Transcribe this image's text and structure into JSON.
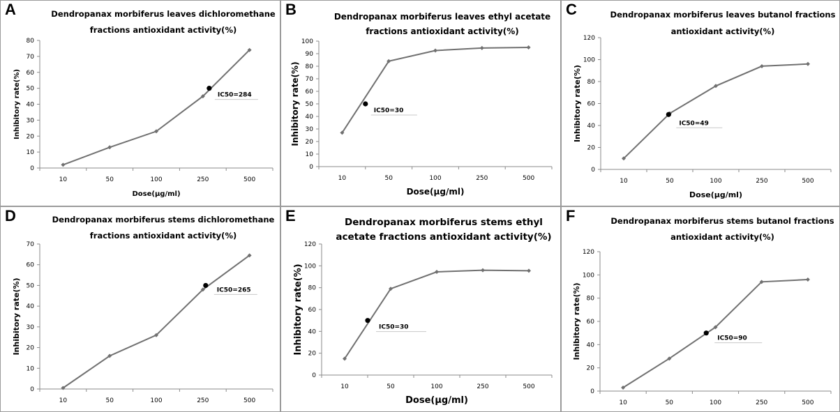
{
  "chart_data": [
    {
      "panel": "A",
      "type": "line",
      "title": [
        "Dendropanax morbiferus leaves dichloromethane",
        "fractions antioxidant activity(%)"
      ],
      "xlabel": "Dose(μg/ml)",
      "ylabel": "Inhibitory rate(%)",
      "categories": [
        "10",
        "50",
        "100",
        "250",
        "500"
      ],
      "x": [
        10,
        50,
        100,
        250,
        500
      ],
      "values": [
        2,
        13,
        23,
        45,
        74
      ],
      "ylim": [
        0,
        80
      ],
      "yticks": [
        0,
        10,
        20,
        30,
        40,
        50,
        60,
        70,
        80
      ],
      "marker": {
        "label": "IC50=284",
        "x": 284,
        "y": 50
      },
      "line_color": "#707070"
    },
    {
      "panel": "B",
      "type": "line",
      "title": [
        "Dendropanax morbiferus leaves ethyl acetate",
        "fractions antioxidant activity(%)"
      ],
      "xlabel": "Dose(μg/ml)",
      "ylabel": "Inhibitory rate(%)",
      "categories": [
        "10",
        "50",
        "100",
        "250",
        "500"
      ],
      "x": [
        10,
        50,
        100,
        250,
        500
      ],
      "values": [
        27,
        84,
        92.5,
        94.5,
        95
      ],
      "ylim": [
        0,
        100
      ],
      "yticks": [
        0,
        10,
        20,
        30,
        40,
        50,
        60,
        70,
        80,
        90,
        100
      ],
      "marker": {
        "label": "IC50=30",
        "x": 30,
        "y": 50
      },
      "line_color": "#707070"
    },
    {
      "panel": "C",
      "type": "line",
      "title": [
        "Dendropanax morbiferus leaves butanol fractions",
        "antioxidant activity(%)"
      ],
      "xlabel": "Dose(μg/ml)",
      "ylabel": "Inhibitory rate(%)",
      "categories": [
        "10",
        "50",
        "100",
        "250",
        "500"
      ],
      "x": [
        10,
        50,
        100,
        250,
        500
      ],
      "values": [
        10,
        51,
        76,
        94,
        96
      ],
      "ylim": [
        0,
        120
      ],
      "yticks": [
        0,
        20,
        40,
        60,
        80,
        100,
        120
      ],
      "marker": {
        "label": "IC50=49",
        "x": 49,
        "y": 50
      },
      "line_color": "#707070"
    },
    {
      "panel": "D",
      "type": "line",
      "title": [
        "Dendropanax morbiferus stems dichloromethane",
        "fractions antioxidant activity(%)"
      ],
      "xlabel": "Dose(μg/ml)",
      "ylabel": "Inhibitory rate(%)",
      "categories": [
        "10",
        "50",
        "100",
        "250",
        "500"
      ],
      "x": [
        10,
        50,
        100,
        250,
        500
      ],
      "values": [
        0.5,
        16,
        26,
        48,
        64.5
      ],
      "ylim": [
        0,
        70
      ],
      "yticks": [
        0,
        10,
        20,
        30,
        40,
        50,
        60,
        70
      ],
      "marker": {
        "label": "IC50=265",
        "x": 265,
        "y": 50
      },
      "line_color": "#707070"
    },
    {
      "panel": "E",
      "type": "line",
      "title": [
        "Dendropanax morbiferus stems ethyl",
        "acetate  fractions antioxidant activity(%)"
      ],
      "xlabel": "Dose(μg/ml)",
      "ylabel": "Inhibitory rate(%)",
      "categories": [
        "10",
        "50",
        "100",
        "250",
        "500"
      ],
      "x": [
        10,
        50,
        100,
        250,
        500
      ],
      "values": [
        15,
        79,
        94.5,
        96,
        95.5
      ],
      "ylim": [
        0,
        120
      ],
      "yticks": [
        0,
        20,
        40,
        60,
        80,
        100,
        120
      ],
      "marker": {
        "label": "IC50=30",
        "x": 30,
        "y": 50
      },
      "line_color": "#707070"
    },
    {
      "panel": "F",
      "type": "line",
      "title": [
        "Dendropanax morbiferus stems butanol fractions",
        "antioxidant activity(%)"
      ],
      "xlabel": "Dose(μg/ml)",
      "ylabel": "Inhibitory rate(%)",
      "categories": [
        "10",
        "50",
        "100",
        "250",
        "500"
      ],
      "x": [
        10,
        50,
        100,
        250,
        500
      ],
      "values": [
        3,
        28,
        55,
        94,
        96
      ],
      "ylim": [
        0,
        120
      ],
      "yticks": [
        0,
        20,
        40,
        60,
        80,
        100,
        120
      ],
      "marker": {
        "label": "IC50=90",
        "x": 90,
        "y": 50
      },
      "line_color": "#707070"
    }
  ]
}
